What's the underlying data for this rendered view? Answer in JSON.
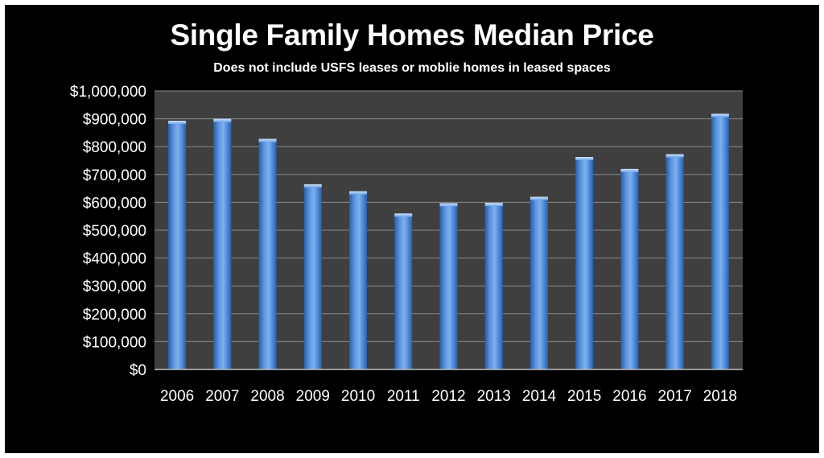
{
  "chart_data": {
    "type": "bar",
    "title": "Single Family Homes Median Price",
    "subtitle": "Does not include USFS leases or moblie homes in leased spaces",
    "xlabel": "",
    "ylabel": "",
    "categories": [
      "2006",
      "2007",
      "2008",
      "2009",
      "2010",
      "2011",
      "2012",
      "2013",
      "2014",
      "2015",
      "2016",
      "2017",
      "2018"
    ],
    "values": [
      893000,
      900000,
      828000,
      665000,
      640000,
      560000,
      597000,
      598000,
      620000,
      763000,
      720000,
      773000,
      918000
    ],
    "ylim": [
      0,
      1000000
    ],
    "yticks": [
      0,
      100000,
      200000,
      300000,
      400000,
      500000,
      600000,
      700000,
      800000,
      900000,
      1000000
    ],
    "ytick_labels": [
      "$0",
      "$100,000",
      "$200,000",
      "$300,000",
      "$400,000",
      "$500,000",
      "$600,000",
      "$700,000",
      "$800,000",
      "$900,000",
      "$1,000,000"
    ],
    "grid": true,
    "legend": "none",
    "colors": {
      "background": "#000000",
      "plot_area": "#3f3f3f",
      "gridline": "#8a8a8a",
      "bar": "#4a86d6",
      "bar_light": "#8fb9ee",
      "bar_dark": "#2a5ea8",
      "text": "#ffffff"
    }
  }
}
